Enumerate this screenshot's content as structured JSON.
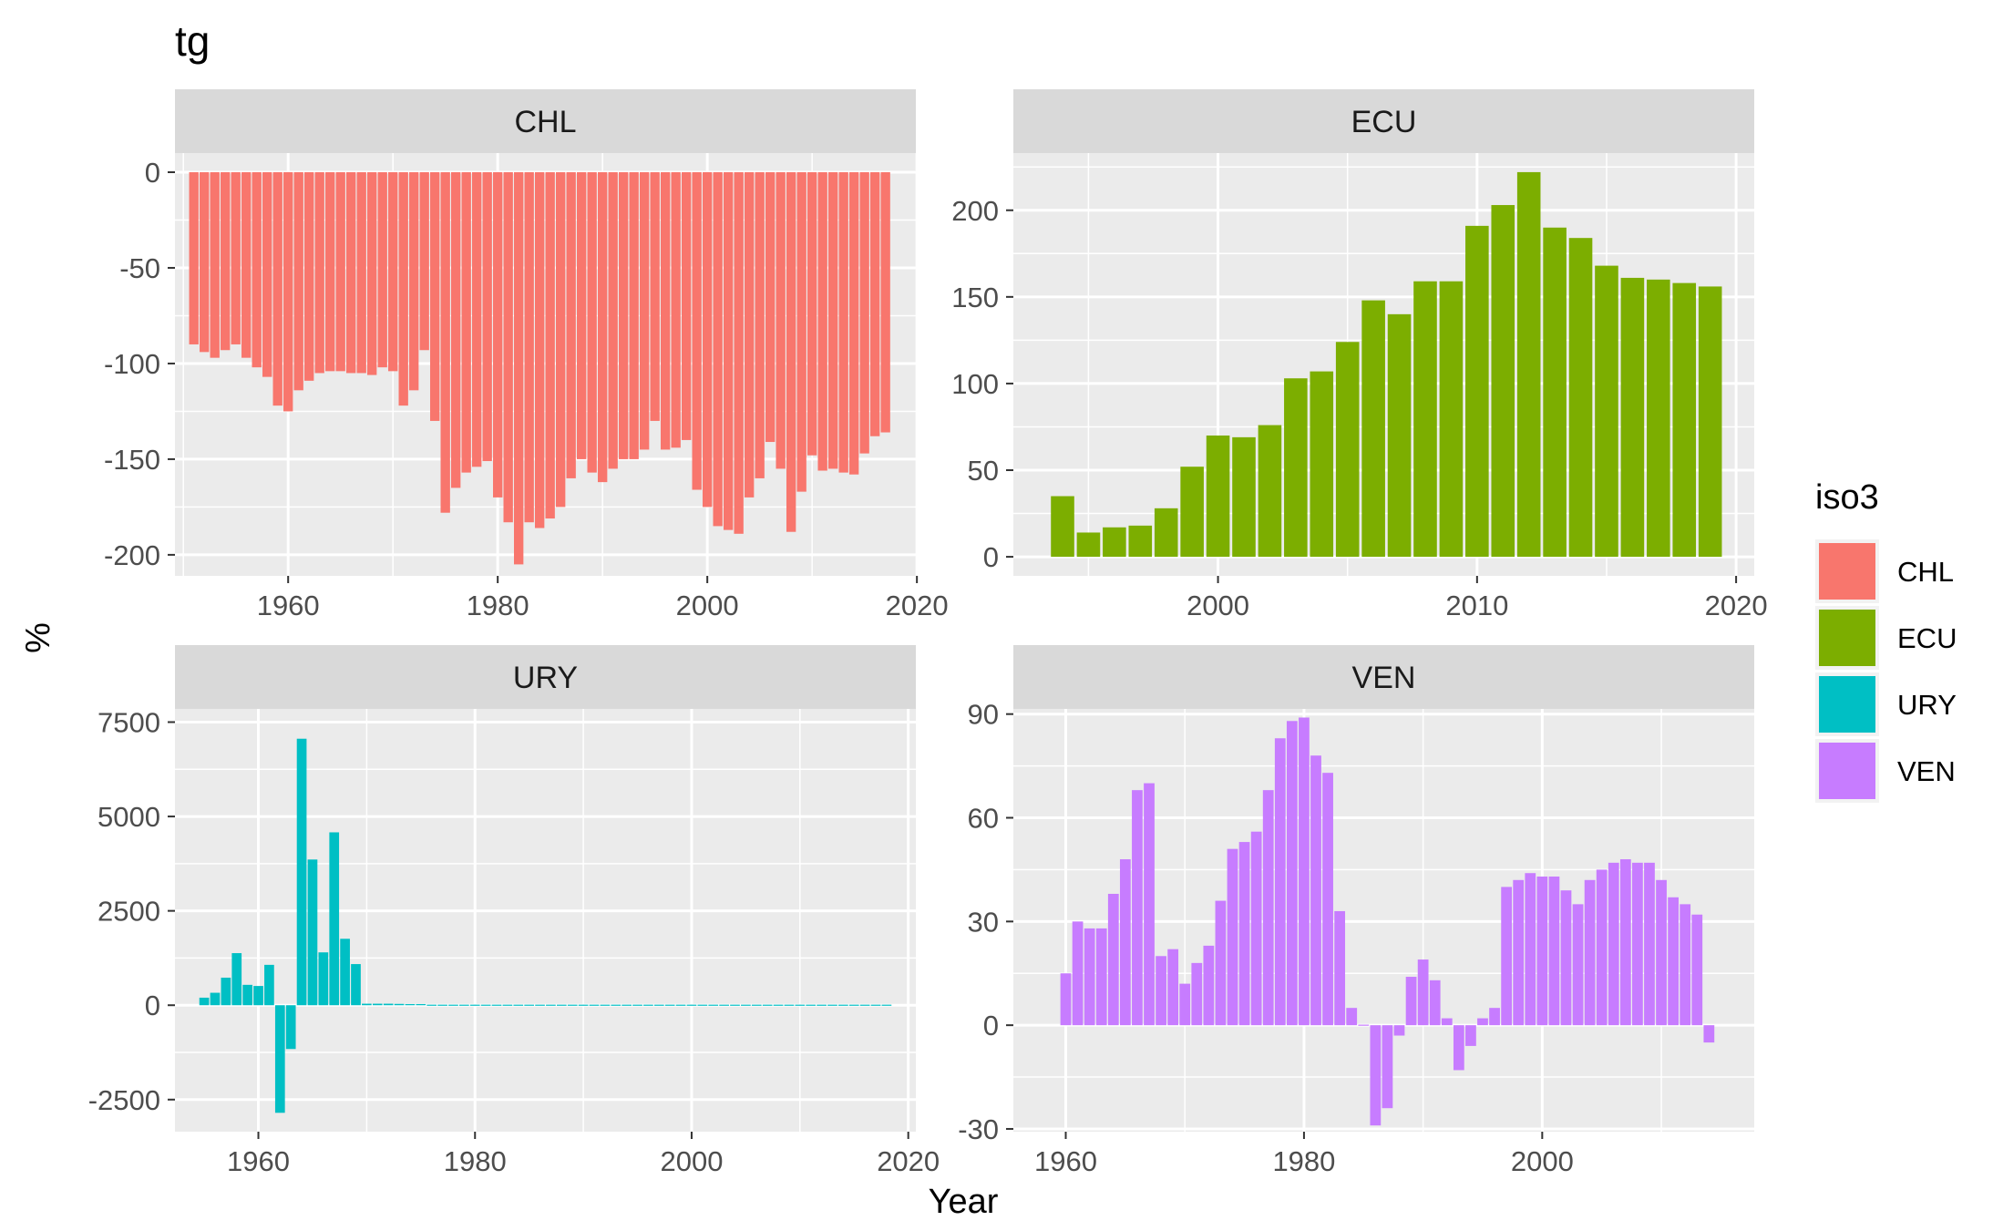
{
  "chart_data": {
    "type": "bar",
    "title": "tg",
    "xlabel": "Year",
    "ylabel": "%",
    "legend": {
      "title": "iso3",
      "placement": "right",
      "items": [
        {
          "label": "CHL",
          "color": "#F8766D"
        },
        {
          "label": "ECU",
          "color": "#7CAE00"
        },
        {
          "label": "URY",
          "color": "#00BFC4"
        },
        {
          "label": "VEN",
          "color": "#C77CFF"
        }
      ]
    },
    "grid": true,
    "panels": [
      {
        "name": "CHL",
        "color": "#F8766D",
        "xlim": [
          1949.2,
          2019.9
        ],
        "ylim": [
          -211,
          10
        ],
        "xticks": [
          1960,
          1980,
          2000,
          2020
        ],
        "yticks": [
          0,
          -50,
          -100,
          -150,
          -200
        ],
        "ytick_labels": [
          "0",
          "-50",
          "-100",
          "-150",
          "-200"
        ],
        "x_start": 1951,
        "values": [
          -90,
          -94,
          -97,
          -93,
          -90,
          -97,
          -102,
          -107,
          -122,
          -125,
          -114,
          -109,
          -105,
          -104,
          -104,
          -105,
          -105,
          -106,
          -102,
          -104,
          -122,
          -114,
          -93,
          -130,
          -178,
          -165,
          -157,
          -154,
          -151,
          -170,
          -183,
          -205,
          -183,
          -186,
          -181,
          -175,
          -160,
          -150,
          -157,
          -162,
          -155,
          -150,
          -150,
          -145,
          -130,
          -145,
          -144,
          -140,
          -166,
          -175,
          -185,
          -187,
          -189,
          -170,
          -160,
          -141,
          -155,
          -188,
          -167,
          -148,
          -156,
          -155,
          -157,
          -158,
          -147,
          -138,
          -136
        ]
      },
      {
        "name": "ECU",
        "color": "#7CAE00",
        "xlim": [
          1992.1,
          2020.7
        ],
        "ylim": [
          -11,
          233
        ],
        "xticks": [
          2000,
          2010,
          2020
        ],
        "yticks": [
          0,
          50,
          100,
          150,
          200
        ],
        "ytick_labels": [
          "0",
          "50",
          "100",
          "150",
          "200"
        ],
        "x_start": 1994,
        "values": [
          35,
          14,
          17,
          18,
          28,
          52,
          70,
          69,
          76,
          103,
          107,
          124,
          148,
          140,
          159,
          159,
          191,
          203,
          222,
          190,
          184,
          168,
          161,
          160,
          158,
          156
        ]
      },
      {
        "name": "URY",
        "color": "#00BFC4",
        "xlim": [
          1952.3,
          2020.7
        ],
        "ylim": [
          -3350,
          7850
        ],
        "xticks": [
          1960,
          1980,
          2000,
          2020
        ],
        "yticks": [
          7500,
          5000,
          2500,
          0,
          -2500
        ],
        "ytick_labels": [
          "7500",
          "5000",
          "2500",
          "0",
          "-2500"
        ],
        "x_start": 1955,
        "values": [
          200,
          330,
          730,
          1380,
          540,
          510,
          1070,
          -2850,
          -1160,
          7060,
          3860,
          1400,
          4580,
          1760,
          1090,
          40,
          40,
          40,
          35,
          30,
          30,
          25,
          25,
          20,
          20,
          15,
          15,
          15,
          15,
          15,
          15,
          15,
          15,
          10,
          10,
          10,
          10,
          10,
          15,
          20,
          25,
          20,
          15,
          15,
          10,
          10,
          10,
          10,
          10,
          10,
          10,
          10,
          10,
          10,
          10,
          10,
          10,
          10,
          10,
          10,
          10,
          10,
          10,
          10
        ]
      },
      {
        "name": "VEN",
        "color": "#C77CFF",
        "xlim": [
          1955.6,
          2017.8
        ],
        "ylim": [
          -30.8,
          91.5
        ],
        "xticks": [
          1960,
          1980,
          2000
        ],
        "yticks": [
          90,
          60,
          30,
          0,
          -30
        ],
        "ytick_labels": [
          "90",
          "60",
          "30",
          "0",
          "-30"
        ],
        "x_start": 1960,
        "values": [
          15,
          30,
          28,
          28,
          38,
          48,
          68,
          70,
          20,
          22,
          12,
          18,
          23,
          36,
          51,
          53,
          56,
          68,
          83,
          88,
          89,
          78,
          73,
          33,
          5,
          0,
          -29,
          -24,
          -3,
          14,
          19,
          13,
          2,
          -13,
          -6,
          2,
          5,
          40,
          42,
          44,
          43,
          43,
          39,
          35,
          42,
          45,
          47,
          48,
          47,
          47,
          42,
          37,
          35,
          32,
          -5
        ]
      }
    ]
  }
}
